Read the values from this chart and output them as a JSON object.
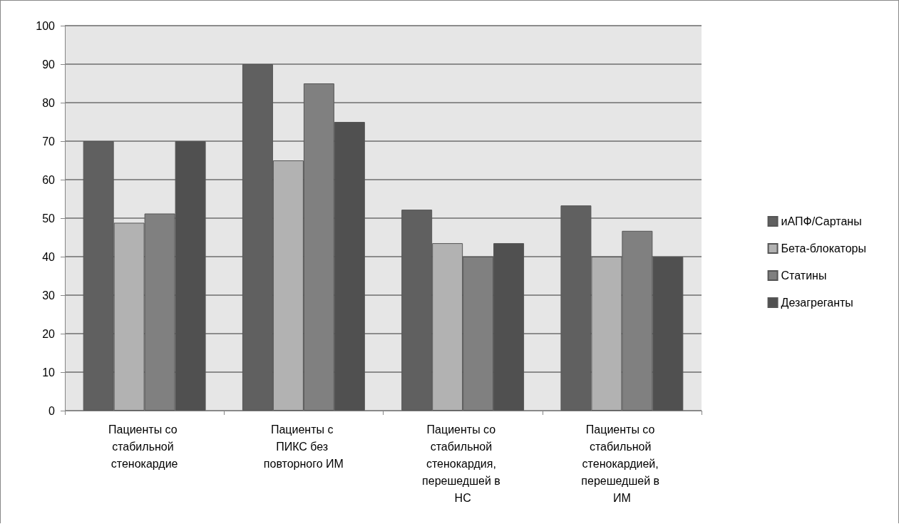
{
  "chart_data": {
    "type": "bar",
    "categories": [
      "Пациенты со стабильной стенокардие",
      "Пациенты с ПИКС без повторного ИМ",
      "Пациенты со стабильной стенокардия, перешедшей в НС",
      "Пациенты со стабильной стенокардией, перешедшей в ИМ"
    ],
    "series": [
      {
        "name": "иАПФ/Сартаны",
        "color": "#606060",
        "values": [
          70,
          90,
          52.2,
          53.3
        ]
      },
      {
        "name": "Бета-блокаторы",
        "color": "#b2b2b2",
        "values": [
          48.8,
          65,
          43.5,
          40
        ]
      },
      {
        "name": "Статины",
        "color": "#808080",
        "values": [
          51.2,
          85,
          40,
          46.7
        ]
      },
      {
        "name": "Дезагреганты",
        "color": "#505050",
        "values": [
          70,
          75,
          43.5,
          40
        ]
      }
    ],
    "ylim": [
      0,
      100
    ],
    "yticks": [
      0,
      10,
      20,
      30,
      40,
      50,
      60,
      70,
      80,
      90,
      100
    ],
    "grid": "y",
    "legend": "right"
  }
}
